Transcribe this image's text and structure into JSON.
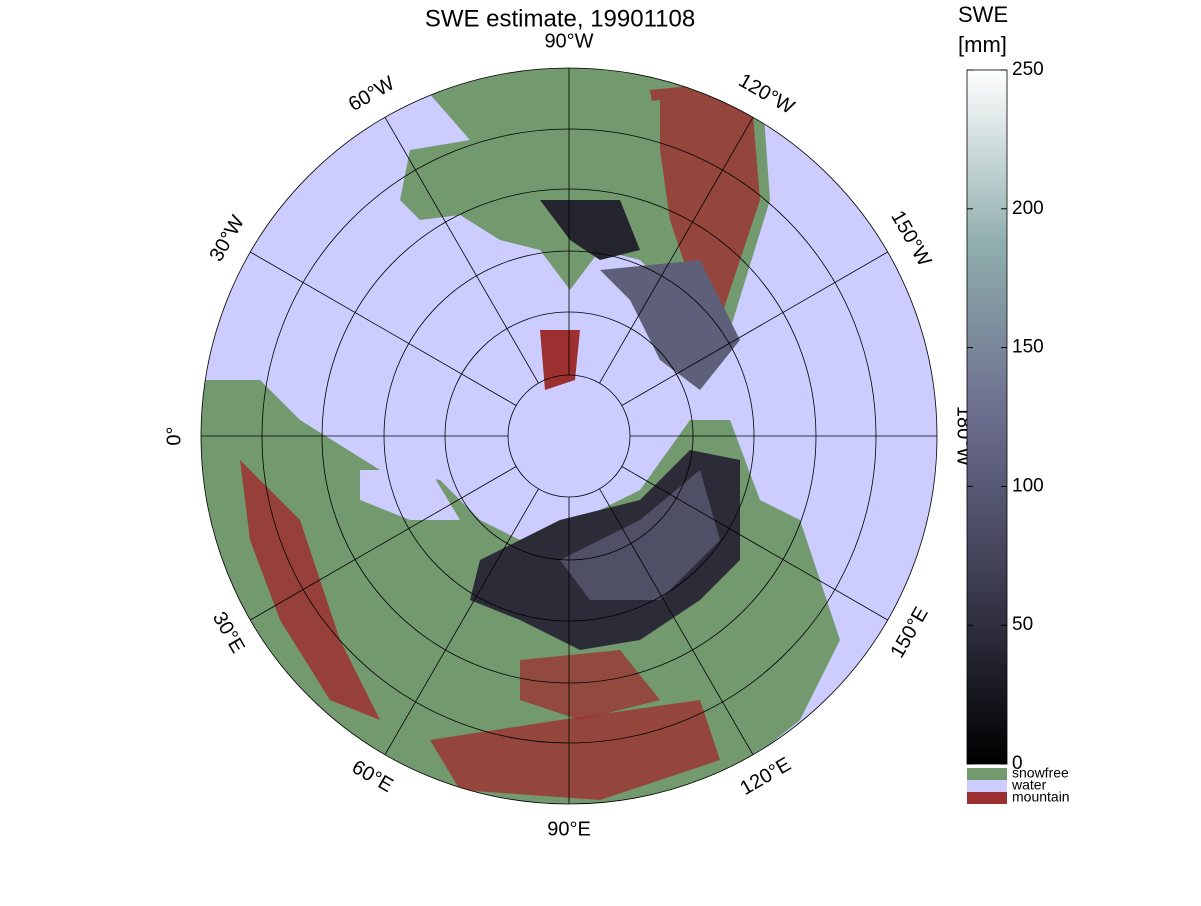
{
  "header": {
    "title": "SWE estimate, 19901108"
  },
  "map": {
    "longitude_labels": [
      "0°",
      "30°E",
      "60°E",
      "90°E",
      "120°E",
      "150°E",
      "180°W",
      "150°W",
      "120°W",
      "90°W",
      "60°W",
      "30°W"
    ]
  },
  "colorbar": {
    "label": [
      "SWE",
      "[mm]"
    ],
    "lim": [
      0,
      250
    ],
    "ticks": [
      0,
      50,
      100,
      150,
      200,
      250
    ]
  },
  "legend": [
    {
      "name": "snowfree",
      "color": "#73996e"
    },
    {
      "name": "water",
      "color": "#ccccff"
    },
    {
      "name": "mountain",
      "color": "#9c3030"
    }
  ]
}
